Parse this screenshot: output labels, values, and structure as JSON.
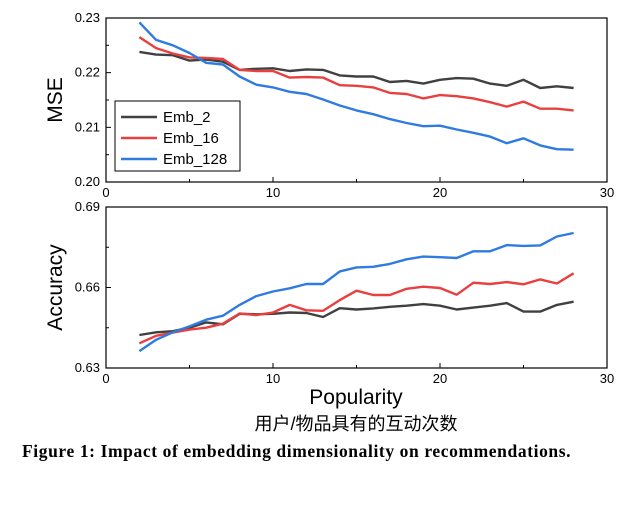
{
  "chart_data": {
    "type": "line",
    "panels": [
      {
        "ylabel": "MSE",
        "ylim": [
          0.2,
          0.23
        ],
        "yticks": [
          "0.20",
          "0.21",
          "0.22",
          "0.23"
        ],
        "xlim": [
          0,
          30
        ],
        "xticks": [
          "0",
          "10",
          "20",
          "30"
        ],
        "legend": "bottom-left",
        "series": [
          {
            "name": "Emb_2",
            "color": "#404040",
            "x": [
              2,
              3,
              4,
              5,
              6,
              7,
              8,
              9,
              10,
              11,
              12,
              13,
              14,
              15,
              16,
              17,
              18,
              19,
              20,
              21,
              22,
              23,
              24,
              25,
              26,
              27,
              28
            ],
            "y": [
              0.2238,
              0.2233,
              0.2232,
              0.2222,
              0.2224,
              0.222,
              0.2205,
              0.2207,
              0.2208,
              0.2203,
              0.2206,
              0.2205,
              0.2195,
              0.2193,
              0.2193,
              0.2183,
              0.2185,
              0.218,
              0.2187,
              0.219,
              0.2189,
              0.218,
              0.2176,
              0.2187,
              0.2172,
              0.2175,
              0.2172
            ]
          },
          {
            "name": "Emb_16",
            "color": "#e8403e",
            "x": [
              2,
              3,
              4,
              5,
              6,
              7,
              8,
              9,
              10,
              11,
              12,
              13,
              14,
              15,
              16,
              17,
              18,
              19,
              20,
              21,
              22,
              23,
              24,
              25,
              26,
              27,
              28
            ],
            "y": [
              0.2265,
              0.2245,
              0.2235,
              0.2228,
              0.2227,
              0.2225,
              0.2205,
              0.2203,
              0.2203,
              0.2191,
              0.2192,
              0.2191,
              0.2177,
              0.2176,
              0.2173,
              0.2163,
              0.2161,
              0.2153,
              0.2159,
              0.2157,
              0.2153,
              0.2146,
              0.2138,
              0.2147,
              0.2134,
              0.2134,
              0.2131
            ]
          },
          {
            "name": "Emb_128",
            "color": "#2f7be0",
            "x": [
              2,
              3,
              4,
              5,
              6,
              7,
              8,
              9,
              10,
              11,
              12,
              13,
              14,
              15,
              16,
              17,
              18,
              19,
              20,
              21,
              22,
              23,
              24,
              25,
              26,
              27,
              28
            ],
            "y": [
              0.2292,
              0.226,
              0.225,
              0.2236,
              0.2218,
              0.2215,
              0.2193,
              0.2178,
              0.2173,
              0.2165,
              0.2161,
              0.2151,
              0.214,
              0.2131,
              0.2124,
              0.2115,
              0.2108,
              0.2102,
              0.2103,
              0.2096,
              0.209,
              0.2083,
              0.2071,
              0.208,
              0.2067,
              0.206,
              0.2059
            ]
          }
        ]
      },
      {
        "ylabel": "Accuracy",
        "ylim": [
          0.63,
          0.69
        ],
        "yticks": [
          "0.63",
          "0.66",
          "0.69"
        ],
        "xlim": [
          0,
          30
        ],
        "xticks": [
          "0",
          "10",
          "20",
          "30"
        ],
        "series": [
          {
            "name": "Emb_2",
            "color": "#404040",
            "x": [
              2,
              3,
              4,
              5,
              6,
              7,
              8,
              9,
              10,
              11,
              12,
              13,
              14,
              15,
              16,
              17,
              18,
              19,
              20,
              21,
              22,
              23,
              24,
              25,
              26,
              27,
              28
            ],
            "y": [
              0.6423,
              0.6433,
              0.6437,
              0.645,
              0.647,
              0.6463,
              0.6502,
              0.65,
              0.6502,
              0.6507,
              0.6505,
              0.649,
              0.6523,
              0.6518,
              0.6522,
              0.6528,
              0.6532,
              0.6538,
              0.6532,
              0.6518,
              0.6525,
              0.6532,
              0.6542,
              0.651,
              0.651,
              0.6535,
              0.6547
            ]
          },
          {
            "name": "Emb_16",
            "color": "#e8403e",
            "x": [
              2,
              3,
              4,
              5,
              6,
              7,
              8,
              9,
              10,
              11,
              12,
              13,
              14,
              15,
              16,
              17,
              18,
              19,
              20,
              21,
              22,
              23,
              24,
              25,
              26,
              27,
              28
            ],
            "y": [
              0.6392,
              0.642,
              0.6432,
              0.6443,
              0.645,
              0.6465,
              0.6503,
              0.6497,
              0.6507,
              0.6535,
              0.6515,
              0.6513,
              0.6553,
              0.6588,
              0.6572,
              0.6572,
              0.6595,
              0.6603,
              0.6598,
              0.6573,
              0.6618,
              0.6613,
              0.662,
              0.6612,
              0.663,
              0.6615,
              0.6653
            ]
          },
          {
            "name": "Emb_128",
            "color": "#2f7be0",
            "x": [
              2,
              3,
              4,
              5,
              6,
              7,
              8,
              9,
              10,
              11,
              12,
              13,
              14,
              15,
              16,
              17,
              18,
              19,
              20,
              21,
              22,
              23,
              24,
              25,
              26,
              27,
              28
            ],
            "y": [
              0.6363,
              0.6405,
              0.6433,
              0.6455,
              0.648,
              0.6495,
              0.6535,
              0.6568,
              0.6585,
              0.6597,
              0.6613,
              0.6613,
              0.666,
              0.6675,
              0.6677,
              0.6688,
              0.6705,
              0.6715,
              0.6713,
              0.671,
              0.6735,
              0.6735,
              0.6758,
              0.6755,
              0.6757,
              0.679,
              0.6803
            ]
          }
        ]
      }
    ],
    "xlabel": "Popularity",
    "xlabel_secondary": "用户/物品具有的互动次数"
  },
  "caption": "Figure 1: Impact of embedding dimensionality on recommendations."
}
